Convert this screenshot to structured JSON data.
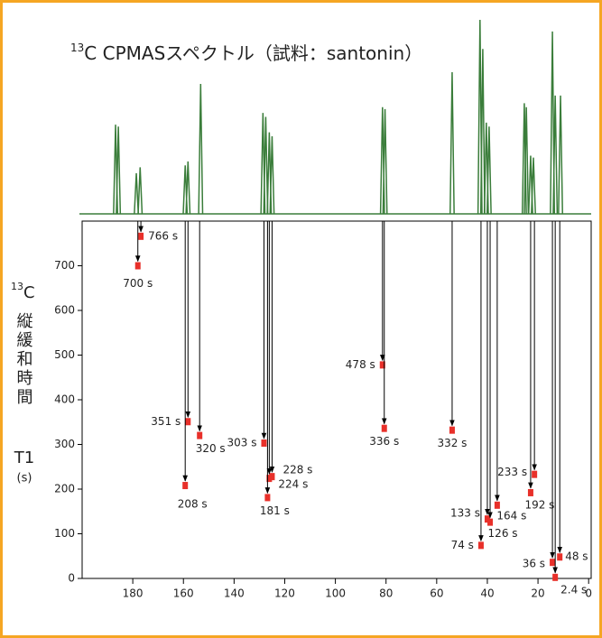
{
  "chart_data": {
    "type": "scatter",
    "title_superscript": "13",
    "title": "C CPMASスペクトル（試料：santonin）",
    "ylabel": {
      "mass": "13",
      "nucleus": "C",
      "name": "縦緩和時間",
      "symbol": "T1",
      "unit": "(s)"
    },
    "xlim": [
      200,
      -1
    ],
    "ylim": [
      0,
      800
    ],
    "xticks": [
      180,
      160,
      140,
      120,
      100,
      80,
      60,
      40,
      20,
      0
    ],
    "yticks": [
      0,
      100,
      200,
      300,
      400,
      500,
      600,
      700
    ],
    "series": [
      {
        "name": "T1",
        "color": "#e8302a",
        "x": [
          176.8,
          178,
          158.2,
          159.3,
          153.6,
          128.2,
          125,
          126.1,
          126.8,
          81.4,
          80.7,
          53.9,
          21.4,
          22.9,
          40,
          38.9,
          36.1,
          42.5,
          14.3,
          11.4,
          13.2
        ],
        "values": [
          766,
          700,
          351,
          208,
          320,
          303,
          228,
          224,
          181,
          478,
          336,
          332,
          233,
          192,
          133,
          126,
          164,
          74,
          36,
          48,
          2.4
        ],
        "value_labels": [
          "766 s",
          "700 s",
          "351 s",
          "208 s",
          "320 s",
          "303 s",
          "228 s",
          "224 s",
          "181 s",
          "478 s",
          "336 s",
          "332 s",
          "233 s",
          "192 s",
          "133 s",
          "126 s",
          "164 s",
          "74 s",
          "36 s",
          "48 s",
          "2.4 s"
        ]
      }
    ],
    "spectrum": {
      "color": "#3a7d3a",
      "x": [
        186.8,
        185.7,
        178.6,
        177.1,
        159.3,
        158.2,
        153.2,
        128.6,
        127.5,
        126.1,
        125,
        81.4,
        80.4,
        53.9,
        42.9,
        41.8,
        40.4,
        39.3,
        25.4,
        24.6,
        22.9,
        21.8,
        14.3,
        13.2,
        11.1
      ],
      "intensity": [
        46,
        45,
        21,
        24,
        25,
        27,
        67,
        52,
        50,
        42,
        40,
        55,
        54,
        73,
        100,
        85,
        47,
        45,
        57,
        55,
        30,
        29,
        94,
        61,
        61
      ]
    }
  }
}
